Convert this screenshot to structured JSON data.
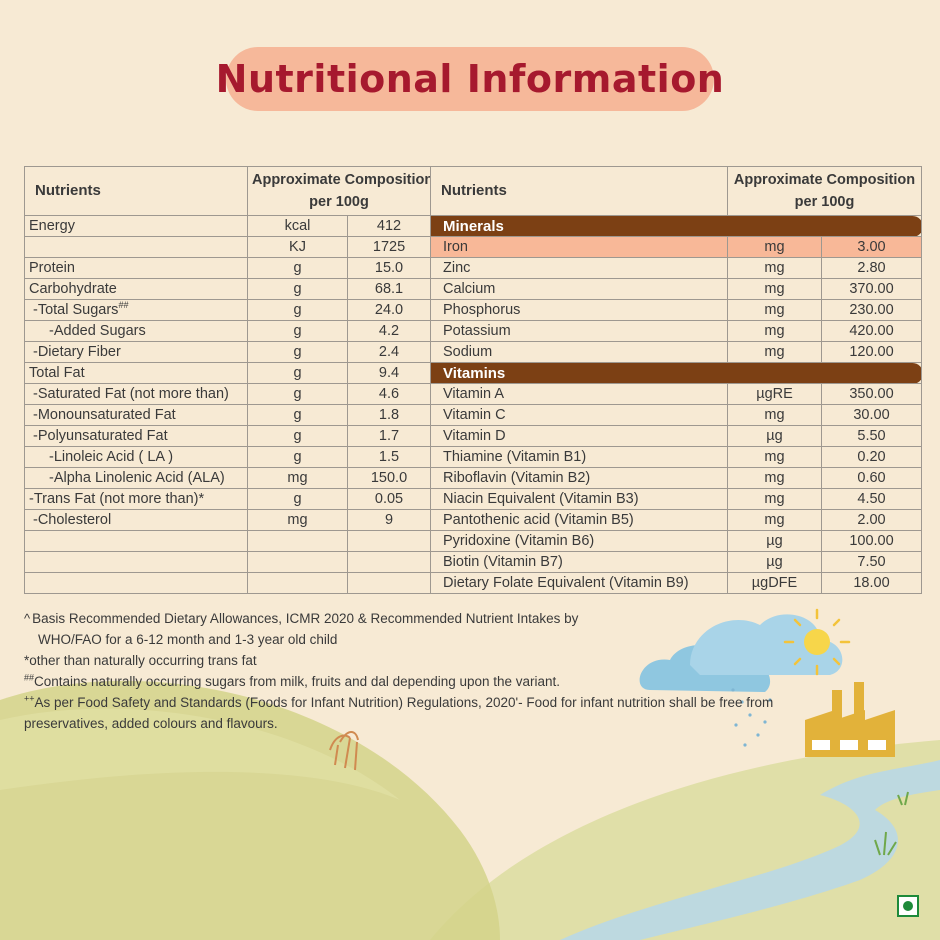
{
  "title": "Nutritional Information",
  "left_table": {
    "header": {
      "col1": "Nutrients",
      "col2_line1": "Approximate Composition",
      "col2_line2": "per 100g"
    },
    "rows": [
      {
        "name": "Energy",
        "unit": "kcal",
        "value": "412"
      },
      {
        "name": "",
        "unit": "KJ",
        "value": "1725"
      },
      {
        "name": "Protein",
        "unit": "g",
        "value": "15.0"
      },
      {
        "name": "Carbohydrate",
        "unit": "g",
        "value": "68.1"
      },
      {
        "name": "-Total Sugars",
        "sup": "##",
        "unit": "g",
        "value": "24.0"
      },
      {
        "name": "-Added Sugars",
        "unit": "g",
        "value": "4.2"
      },
      {
        "name": "-Dietary Fiber",
        "unit": "g",
        "value": "2.4"
      },
      {
        "name": "Total Fat",
        "unit": "g",
        "value": "9.4"
      },
      {
        "name": "-Saturated Fat (not more than)",
        "unit": "g",
        "value": "4.6"
      },
      {
        "name": "-Monounsaturated Fat",
        "unit": "g",
        "value": "1.8"
      },
      {
        "name": "-Polyunsaturated Fat",
        "unit": "g",
        "value": "1.7"
      },
      {
        "name": "-Linoleic Acid ( LA )",
        "unit": "g",
        "value": "1.5"
      },
      {
        "name": "-Alpha Linolenic Acid (ALA)",
        "unit": "mg",
        "value": "150.0"
      },
      {
        "name": "-Trans Fat (not more than)*",
        "unit": "g",
        "value": "0.05"
      },
      {
        "name": "-Cholesterol",
        "unit": "mg",
        "value": "9"
      }
    ]
  },
  "right_table": {
    "header": {
      "col1": "Nutrients",
      "col2_line1": "Approximate Composition",
      "col2_line2": "per 100g"
    },
    "minerals_label": "Minerals",
    "minerals": [
      {
        "name": "Iron",
        "unit": "mg",
        "value": "3.00"
      },
      {
        "name": "Zinc",
        "unit": "mg",
        "value": "2.80"
      },
      {
        "name": "Calcium",
        "unit": "mg",
        "value": "370.00"
      },
      {
        "name": "Phosphorus",
        "unit": "mg",
        "value": "230.00"
      },
      {
        "name": "Potassium",
        "unit": "mg",
        "value": "420.00"
      },
      {
        "name": "Sodium",
        "unit": "mg",
        "value": "120.00"
      }
    ],
    "vitamins_label": "Vitamins",
    "vitamins": [
      {
        "name": "Vitamin A",
        "unit": "µgRE",
        "value": "350.00"
      },
      {
        "name": "Vitamin C",
        "unit": "mg",
        "value": "30.00"
      },
      {
        "name": "Vitamin D",
        "unit": "µg",
        "value": "5.50"
      },
      {
        "name": "Thiamine (Vitamin B1)",
        "unit": "mg",
        "value": "0.20"
      },
      {
        "name": "Riboflavin (Vitamin B2)",
        "unit": "mg",
        "value": "0.60"
      },
      {
        "name": "Niacin Equivalent (Vitamin B3)",
        "unit": "mg",
        "value": "4.50"
      },
      {
        "name": "Pantothenic acid (Vitamin B5)",
        "unit": "mg",
        "value": "2.00"
      },
      {
        "name": "Pyridoxine (Vitamin B6)",
        "unit": "µg",
        "value": "100.00"
      },
      {
        "name": "Biotin (Vitamin B7)",
        "unit": "µg",
        "value": "7.50"
      },
      {
        "name": "Dietary Folate Equivalent (Vitamin B9)",
        "unit": "µgDFE",
        "value": "18.00"
      }
    ]
  },
  "footnotes": [
    {
      "mark": "^",
      "text": "Basis Recommended Dietary Allowances, ICMR 2020 & Recommended Nutrient Intakes by"
    },
    {
      "mark": "",
      "text": "WHO/FAO for a 6-12 month and 1-3 year old child"
    },
    {
      "mark": "",
      "text": "*other than naturally occurring trans fat"
    },
    {
      "mark": "##",
      "text": "Contains naturally occurring sugars from milk, fruits and dal depending upon the variant."
    },
    {
      "mark": "++",
      "text": "As per Food Safety and Standards (Foods for Infant Nutrition) Regulations, 2020'- Food for infant nutrition shall be free from"
    },
    {
      "mark": "",
      "text": "preservatives, added colours and   flavours."
    }
  ],
  "colors": {
    "background": "#f7ead4",
    "title_pill": "#f6b89a",
    "title_text": "#a6192e",
    "section_band": "#7c4014",
    "highlight_row": "#f8b898",
    "veg_mark": "#1e8a3a"
  },
  "icons": [
    "cloud-icon",
    "sun-icon",
    "factory-icon",
    "wheat-icon",
    "grass-icon",
    "veg-mark-icon"
  ]
}
